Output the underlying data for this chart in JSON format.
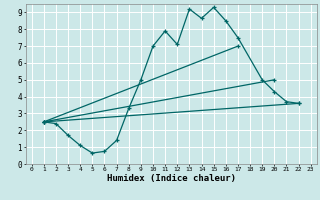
{
  "xlabel": "Humidex (Indice chaleur)",
  "background_color": "#cce8e8",
  "grid_color": "#ffffff",
  "line_color": "#006666",
  "xlim": [
    -0.5,
    23.5
  ],
  "ylim": [
    0,
    9.5
  ],
  "xticks": [
    0,
    1,
    2,
    3,
    4,
    5,
    6,
    7,
    8,
    9,
    10,
    11,
    12,
    13,
    14,
    15,
    16,
    17,
    18,
    19,
    20,
    21,
    22,
    23
  ],
  "yticks": [
    0,
    1,
    2,
    3,
    4,
    5,
    6,
    7,
    8,
    9
  ],
  "series": [
    {
      "x": [
        1,
        2,
        3,
        4,
        5,
        6,
        7,
        8,
        9,
        10,
        11,
        12,
        13,
        14,
        15,
        16,
        17,
        19,
        20,
        21,
        22
      ],
      "y": [
        2.5,
        2.4,
        1.7,
        1.1,
        0.65,
        0.75,
        1.4,
        3.3,
        5.0,
        7.0,
        7.9,
        7.1,
        9.2,
        8.65,
        9.3,
        8.5,
        7.5,
        5.0,
        4.3,
        3.7,
        3.6
      ]
    },
    {
      "x": [
        1,
        22
      ],
      "y": [
        2.5,
        3.6
      ]
    },
    {
      "x": [
        1,
        17
      ],
      "y": [
        2.5,
        7.0
      ]
    },
    {
      "x": [
        1,
        20
      ],
      "y": [
        2.5,
        5.0
      ]
    }
  ]
}
